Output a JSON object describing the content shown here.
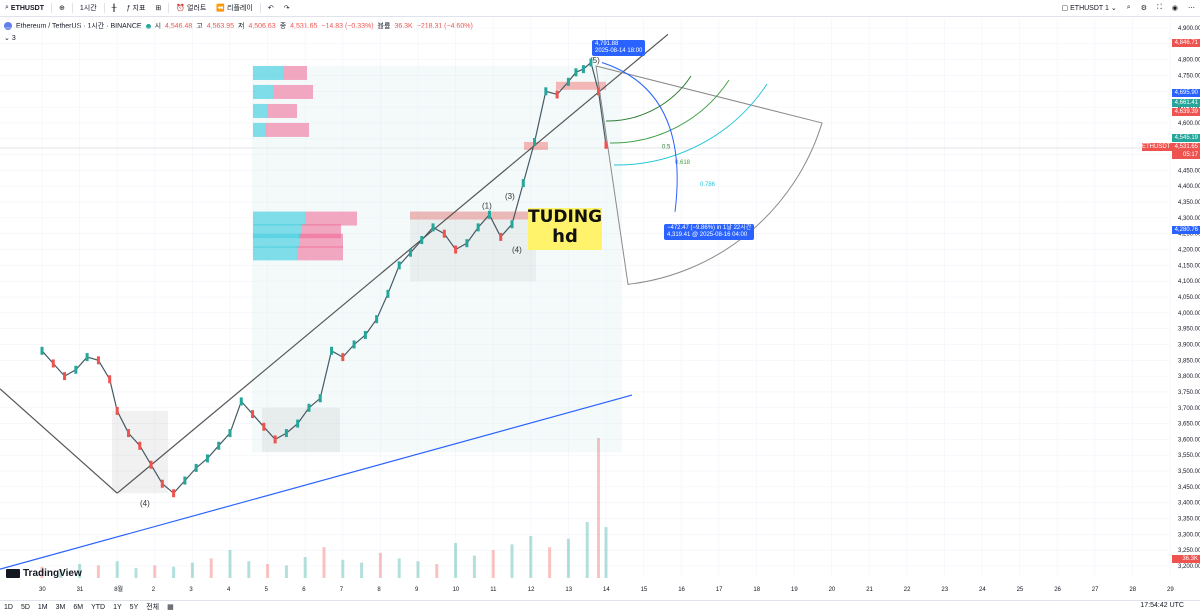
{
  "toolbar": {
    "symbol": "ETHUSDT",
    "interval": "1시간",
    "indicators": "지표",
    "alert": "얼러트",
    "replay": "리플레이",
    "layout_name": "ETHUSDT 1"
  },
  "info": {
    "title": "Ethereum / TetherUS · 1시간 · BINANCE",
    "open_label": "시",
    "open": "4,546.48",
    "high_label": "고",
    "high": "4,563.95",
    "low_label": "저",
    "low": "4,506.63",
    "close_label": "종",
    "close": "4,531.65",
    "change": "−14.83 (−0.33%)",
    "volume_label": "볼륨",
    "volume": "36.3K",
    "volume_change": "−218.31 (−4.60%)",
    "indicator_count": "3"
  },
  "watermark": {
    "line1": "TUDING",
    "line2": "hd"
  },
  "callouts": {
    "high_value": "4,791.88",
    "high_time": "2025-08-14 18:00",
    "measure_line1": "−472.47 (−9.86%) in 1날 22시간",
    "measure_line2": "4,319.41 @ 2025-08-16 04:00"
  },
  "fib_labels": [
    "0.5",
    "0.618",
    "0.786"
  ],
  "wave_labels": [
    "(1)",
    "(3)",
    "(4)",
    "(5)",
    "(4)"
  ],
  "price_tags": {
    "top": "4,846.71",
    "blue1": "4,695.90",
    "green1": "4,661.41",
    "red1": "4,639.39",
    "green2": "4,545.19",
    "current": "4,531.65",
    "countdown": "05:17",
    "blue2": "4,280.76",
    "volume": "36.3K",
    "symbol": "ETHUSDT"
  },
  "bottom": {
    "ranges": [
      "1D",
      "5D",
      "1M",
      "3M",
      "6M",
      "YTD",
      "1Y",
      "5Y",
      "전체"
    ],
    "clock": "17:54:42 UTC"
  },
  "colors": {
    "up": "#26a69a",
    "down": "#ef5350",
    "trend": "#2962ff",
    "fan": "#8a8a8a"
  },
  "chart_data": {
    "type": "line",
    "symbol": "ETHUSDT",
    "exchange": "BINANCE",
    "interval": "1h",
    "y_axis": {
      "ticks": [
        3200,
        3250,
        3300,
        3350,
        3400,
        3450,
        3500,
        3550,
        3600,
        3650,
        3700,
        3750,
        3800,
        3850,
        3900,
        3950,
        4000,
        4050,
        4100,
        4150,
        4200,
        4250,
        4300,
        4350,
        4400,
        4450,
        4500,
        4550,
        4600,
        4650,
        4700,
        4750,
        4800,
        4850,
        4900
      ],
      "tick_labels": [
        "3,200.00",
        "3,250.00",
        "3,300.00",
        "3,350.00",
        "3,400.00",
        "3,450.00",
        "3,500.00",
        "3,550.00",
        "3,600.00",
        "3,650.00",
        "3,700.00",
        "3,750.00",
        "3,800.00",
        "3,850.00",
        "3,900.00",
        "3,950.00",
        "4,000.00",
        "4,050.00",
        "4,100.00",
        "4,150.00",
        "4,200.00",
        "4,250.00",
        "4,300.00",
        "4,350.00",
        "4,400.00",
        "4,450.00",
        "4,500.00",
        "4,550.00",
        "4,600.00",
        "4,650.00",
        "4,700.00",
        "4,750.00",
        "4,800.00",
        "4,850.00",
        "4,900.00"
      ],
      "ylim": [
        3180,
        4910
      ]
    },
    "x_axis": {
      "tick_labels": [
        "30",
        "31",
        "8월",
        "2",
        "3",
        "4",
        "5",
        "6",
        "7",
        "8",
        "9",
        "10",
        "11",
        "12",
        "13",
        "14",
        "15",
        "16",
        "17",
        "18",
        "19",
        "20",
        "21",
        "22",
        "23",
        "24",
        "25",
        "26",
        "27",
        "28",
        "29"
      ]
    },
    "price_series": {
      "name": "",
      "x": [
        0.0,
        0.3,
        0.6,
        0.9,
        1.2,
        1.5,
        1.8,
        2.0,
        2.3,
        2.6,
        2.9,
        3.2,
        3.5,
        3.8,
        4.1,
        4.4,
        4.7,
        5.0,
        5.3,
        5.6,
        5.9,
        6.2,
        6.5,
        6.8,
        7.1,
        7.4,
        7.7,
        8.0,
        8.3,
        8.6,
        8.9,
        9.2,
        9.5,
        9.8,
        10.1,
        10.4,
        10.7,
        11.0,
        11.3,
        11.6,
        11.9,
        12.2,
        12.5,
        12.8,
        13.1,
        13.4,
        13.7,
        14.0,
        14.2,
        14.4,
        14.6,
        14.8,
        15.0
      ],
      "values": [
        3880,
        3840,
        3800,
        3820,
        3860,
        3850,
        3790,
        3690,
        3620,
        3580,
        3520,
        3460,
        3430,
        3470,
        3510,
        3540,
        3580,
        3620,
        3720,
        3680,
        3640,
        3600,
        3620,
        3650,
        3700,
        3730,
        3880,
        3860,
        3900,
        3930,
        3980,
        4060,
        4150,
        4190,
        4230,
        4270,
        4250,
        4200,
        4220,
        4270,
        4310,
        4240,
        4280,
        4410,
        4540,
        4700,
        4690,
        4730,
        4760,
        4770,
        4791,
        4700,
        4531
      ]
    },
    "volume_series": {
      "name": "",
      "x": [
        0,
        0.5,
        1,
        1.5,
        2,
        2.5,
        3,
        3.5,
        4,
        4.5,
        5,
        5.5,
        6,
        6.5,
        7,
        7.5,
        8,
        8.5,
        9,
        9.5,
        10,
        10.5,
        11,
        11.5,
        12,
        12.5,
        13,
        13.5,
        14,
        14.5,
        14.8,
        15
      ],
      "values": [
        8,
        6,
        10,
        9,
        12,
        7,
        9,
        8,
        11,
        14,
        20,
        12,
        10,
        9,
        15,
        22,
        13,
        11,
        18,
        14,
        12,
        10,
        25,
        16,
        20,
        24,
        30,
        22,
        28,
        40,
        100,
        36.3
      ]
    },
    "annotations": {
      "high": 4791.88,
      "high_time": "2025-08-14 18:00",
      "target": 4319.41,
      "target_time": "2025-08-16 04:00",
      "change": -472.47,
      "change_pct": -9.86,
      "fib_levels": [
        0.5,
        0.618,
        0.786
      ]
    },
    "grid": true,
    "legend": "none"
  }
}
